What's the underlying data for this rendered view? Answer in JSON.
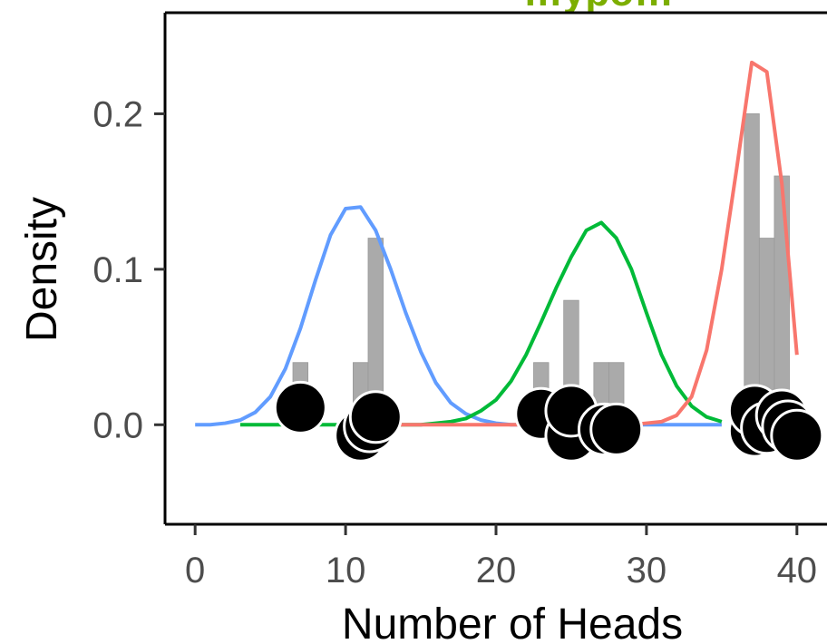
{
  "chart_data": {
    "type": "histogram",
    "title": "…ypo…",
    "xlabel": "Number of Heads",
    "ylabel": "Density",
    "xlim": [
      -2,
      42
    ],
    "ylim": [
      -0.064,
      0.265
    ],
    "x_ticks": [
      "0",
      "10",
      "20",
      "30",
      "40"
    ],
    "x_tick_values": [
      0,
      10,
      20,
      30,
      40
    ],
    "y_ticks": [
      "0.0",
      "0.1",
      "0.2"
    ],
    "y_tick_values": [
      0.0,
      0.1,
      0.2
    ],
    "grid": false,
    "histogram": {
      "bin_width": 1,
      "color": "#aaaaaa",
      "bins": [
        {
          "x": 7,
          "density": 0.04
        },
        {
          "x": 11,
          "density": 0.04
        },
        {
          "x": 12,
          "density": 0.12
        },
        {
          "x": 23,
          "density": 0.04
        },
        {
          "x": 25,
          "density": 0.08
        },
        {
          "x": 27,
          "density": 0.04
        },
        {
          "x": 28,
          "density": 0.04
        },
        {
          "x": 37,
          "density": 0.2
        },
        {
          "x": 38,
          "density": 0.12
        },
        {
          "x": 39,
          "density": 0.16
        }
      ]
    },
    "series": [
      {
        "type": "line",
        "color": "#619cff",
        "x": [
          0,
          1,
          2,
          3,
          4,
          5,
          6,
          7,
          8,
          9,
          10,
          11,
          12,
          13,
          14,
          15,
          16,
          17,
          18,
          19,
          20,
          21,
          22,
          23,
          24,
          25,
          26,
          27,
          28,
          29,
          30,
          31,
          32,
          33,
          34,
          35
        ],
        "y": [
          0,
          0,
          0.001,
          0.003,
          0.008,
          0.018,
          0.036,
          0.062,
          0.093,
          0.122,
          0.139,
          0.14,
          0.125,
          0.1,
          0.072,
          0.047,
          0.027,
          0.014,
          0.007,
          0.003,
          0.001,
          0,
          0,
          0,
          0,
          0,
          0,
          0,
          0,
          0,
          0,
          0,
          0,
          0,
          0,
          0
        ]
      },
      {
        "type": "line",
        "color": "#00ba38",
        "x": [
          3,
          4,
          5,
          6,
          7,
          8,
          9,
          10,
          11,
          12,
          13,
          14,
          15,
          16,
          17,
          18,
          19,
          20,
          21,
          22,
          23,
          24,
          25,
          26,
          27,
          28,
          29,
          30,
          31,
          32,
          33,
          34,
          35
        ],
        "y": [
          0,
          0,
          0,
          0,
          0,
          0,
          0,
          0,
          0,
          0,
          0,
          0,
          0,
          0.001,
          0.002,
          0.004,
          0.009,
          0.016,
          0.028,
          0.045,
          0.066,
          0.088,
          0.108,
          0.125,
          0.13,
          0.12,
          0.1,
          0.072,
          0.045,
          0.025,
          0.012,
          0.005,
          0.002
        ]
      },
      {
        "type": "line",
        "color": "#f8766d",
        "x": [
          13,
          14,
          15,
          16,
          17,
          18,
          19,
          20,
          21,
          22,
          23,
          24,
          25,
          26,
          27,
          28,
          29,
          30,
          31,
          32,
          33,
          34,
          35,
          36,
          37,
          38,
          39,
          40
        ],
        "y": [
          0,
          0,
          0,
          0,
          0,
          0,
          0,
          0,
          0,
          0,
          0,
          0,
          0,
          0,
          0,
          0,
          0,
          0.001,
          0.002,
          0.006,
          0.018,
          0.048,
          0.1,
          0.165,
          0.233,
          0.227,
          0.155,
          0.045
        ]
      }
    ],
    "points": {
      "color": "#000000",
      "stroke": "#ffffff",
      "data": [
        {
          "x": 7,
          "y": 0.011
        },
        {
          "x": 11,
          "y": -0.007
        },
        {
          "x": 11.6,
          "y": -0.001
        },
        {
          "x": 12,
          "y": 0.005
        },
        {
          "x": 23,
          "y": 0.007
        },
        {
          "x": 25,
          "y": -0.007
        },
        {
          "x": 25,
          "y": 0.009
        },
        {
          "x": 27.2,
          "y": -0.003
        },
        {
          "x": 28,
          "y": -0.003
        },
        {
          "x": 37.2,
          "y": -0.004
        },
        {
          "x": 37.2,
          "y": 0.009
        },
        {
          "x": 38,
          "y": -0.002
        },
        {
          "x": 39,
          "y": 0.006
        },
        {
          "x": 39.4,
          "y": -0.001
        },
        {
          "x": 40,
          "y": -0.007
        }
      ]
    }
  }
}
